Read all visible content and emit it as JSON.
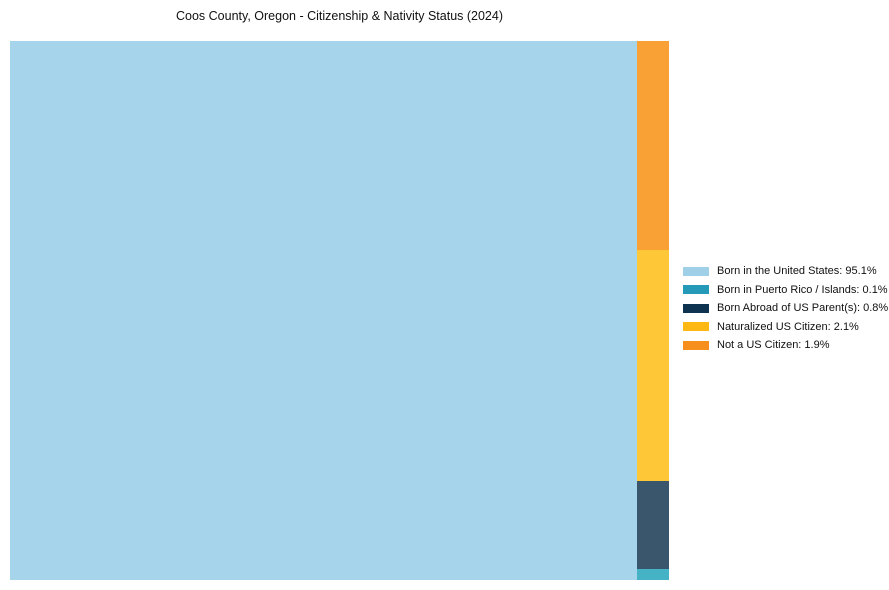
{
  "title": "Coos County, Oregon - Citizenship & Nativity Status (2024)",
  "chart_data": {
    "type": "treemap",
    "title": "Coos County, Oregon - Citizenship & Nativity Status (2024)",
    "unit": "%",
    "categories": [
      "Born in the United States",
      "Born in Puerto Rico / Islands",
      "Born Abroad of US Parent(s)",
      "Naturalized US Citizen",
      "Not a US Citizen"
    ],
    "values": [
      95.1,
      0.1,
      0.8,
      2.1,
      1.9
    ],
    "colors": [
      "#a5d4eb",
      "#45b2c6",
      "#3a566c",
      "#fdc737",
      "#f9a134"
    ],
    "legend_colors": [
      "#9fd0e8",
      "#2499b8",
      "#0d3350",
      "#fdb813",
      "#f78f1f"
    ],
    "legend_labels": [
      "Born in the United States: 95.1%",
      "Born in Puerto Rico / Islands: 0.1%",
      "Born Abroad of US Parent(s): 0.8%",
      "Naturalized US Citizen: 2.1%",
      "Not a US Citizen: 1.9%"
    ],
    "legend_position": "right-center",
    "layout": {
      "main_index": 0,
      "column_top_to_bottom": [
        4,
        3,
        2,
        1
      ],
      "grid": false,
      "axes": false
    }
  }
}
